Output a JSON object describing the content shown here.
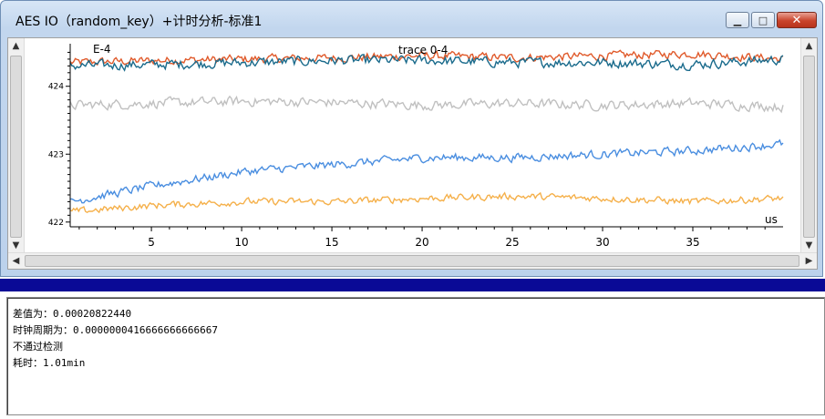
{
  "window": {
    "title": "AES IO（random_key）+计时分析-标准1",
    "minimize_glyph": "▁",
    "maximize_glyph": "□",
    "close_glyph": "✕"
  },
  "chart_data": {
    "type": "line",
    "title": "trace 0-4",
    "y_exponent_label": "E-4",
    "x_unit_label": "us",
    "x_ticks": [
      "5",
      "10",
      "15",
      "20",
      "25",
      "30",
      "35"
    ],
    "y_ticks": [
      "422",
      "423",
      "424"
    ],
    "xlim": [
      0.5,
      40
    ],
    "ylim": [
      421.93,
      424.6
    ],
    "grid": false,
    "series": [
      {
        "color": "#e05a2b",
        "base": [
          424.35,
          424.38,
          424.4,
          424.42,
          424.45,
          424.42,
          424.45,
          424.48,
          424.4
        ],
        "noise": 0.06
      },
      {
        "color": "#1a6b8c",
        "base": [
          424.3,
          424.32,
          424.35,
          424.38,
          424.38,
          424.35,
          424.35,
          424.32,
          424.4
        ],
        "noise": 0.07
      },
      {
        "color": "#c0c0c0",
        "base": [
          423.72,
          423.75,
          423.78,
          423.76,
          423.72,
          423.75,
          423.72,
          423.75,
          423.7
        ],
        "noise": 0.07
      },
      {
        "color": "#4a8ee0",
        "base": [
          422.3,
          422.55,
          422.75,
          422.85,
          422.95,
          422.95,
          423.0,
          423.05,
          423.15
        ],
        "noise": 0.06
      },
      {
        "color": "#f5b04a",
        "base": [
          422.15,
          422.25,
          422.3,
          422.3,
          422.35,
          422.38,
          422.35,
          422.3,
          422.35
        ],
        "noise": 0.05
      }
    ]
  },
  "log": {
    "lines": [
      "差值为：0.00020822440",
      "时钟周期为：0.0000000416666666666667",
      "不通过检测",
      "耗时：1.01min"
    ]
  }
}
